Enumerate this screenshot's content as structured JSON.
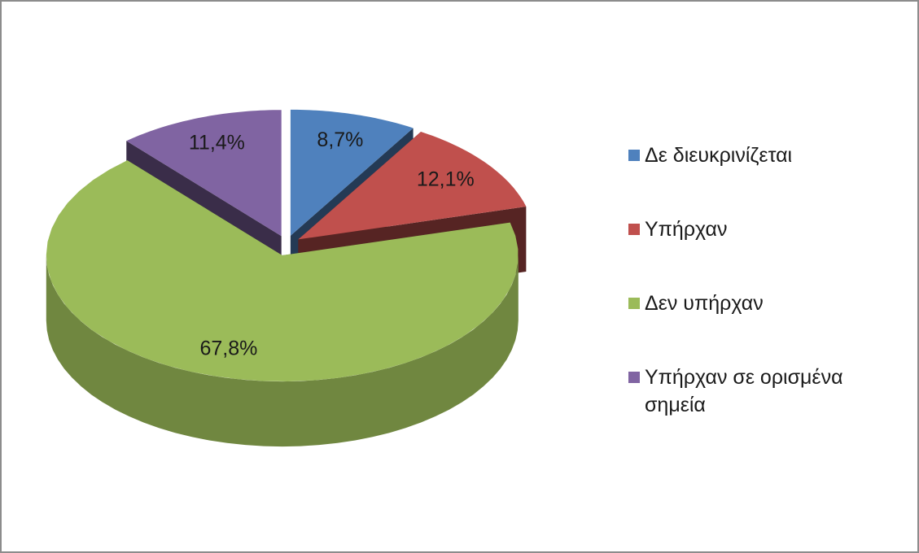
{
  "chart_data": {
    "type": "pie",
    "categories": [
      "Δε διευκρινίζεται",
      "Υπήρχαν",
      "Δεν υπήρχαν",
      "Υπήρχαν σε ορισμένα σημεία"
    ],
    "values": [
      8.7,
      12.1,
      67.8,
      11.4
    ],
    "value_labels": [
      "8,7%",
      "12,1%",
      "67,8%",
      "11,4%"
    ],
    "colors": [
      "#4f81bd",
      "#c0504d",
      "#9bbb59",
      "#8064a2"
    ],
    "legend": "right"
  }
}
